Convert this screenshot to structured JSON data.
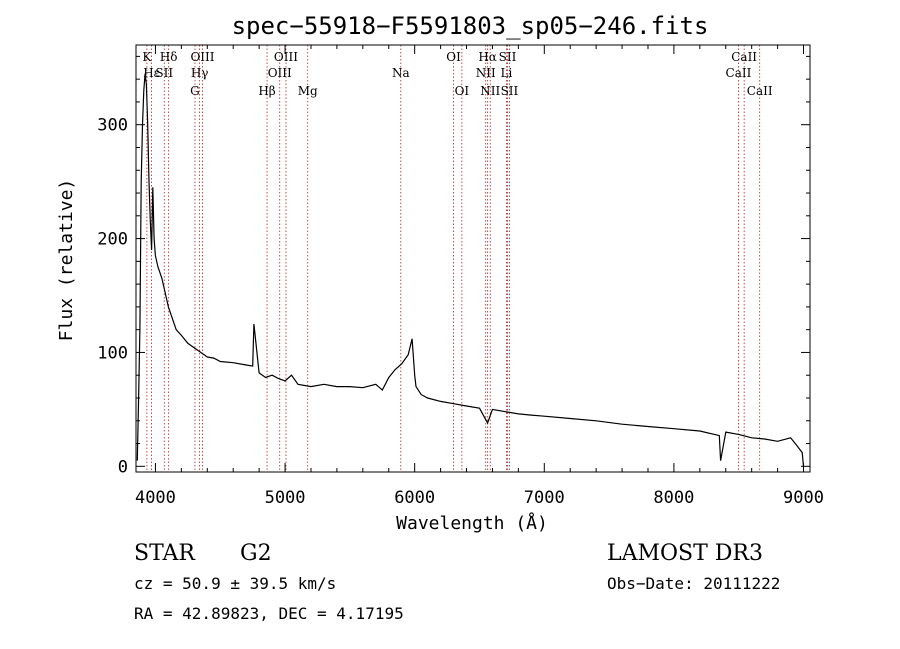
{
  "chart_data": {
    "type": "line",
    "title": "spec−55918−F5591803_sp05−246.fits",
    "xlabel": "Wavelength (Å)",
    "ylabel": "Flux (relative)",
    "xlim": [
      3850,
      9050
    ],
    "ylim": [
      -5,
      370
    ],
    "x_ticks": [
      4000,
      5000,
      6000,
      7000,
      8000,
      9000
    ],
    "y_ticks": [
      0,
      100,
      200,
      300
    ],
    "series": [
      {
        "name": "flux",
        "x": [
          3860,
          3870,
          3880,
          3890,
          3900,
          3910,
          3920,
          3930,
          3940,
          3950,
          3960,
          3970,
          3980,
          3990,
          4000,
          4020,
          4050,
          4080,
          4100,
          4130,
          4160,
          4200,
          4250,
          4300,
          4350,
          4400,
          4450,
          4500,
          4600,
          4700,
          4750,
          4760,
          4800,
          4850,
          4900,
          4950,
          5000,
          5050,
          5100,
          5200,
          5300,
          5400,
          5500,
          5600,
          5700,
          5750,
          5800,
          5850,
          5900,
          5950,
          5980,
          6000,
          6010,
          6050,
          6100,
          6200,
          6300,
          6400,
          6500,
          6563,
          6600,
          6700,
          6800,
          6900,
          7000,
          7200,
          7400,
          7600,
          7800,
          8000,
          8200,
          8350,
          8360,
          8400,
          8500,
          8600,
          8700,
          8800,
          8900,
          8950,
          8990,
          9000
        ],
        "y": [
          5,
          60,
          120,
          250,
          300,
          330,
          345,
          335,
          300,
          250,
          215,
          190,
          245,
          200,
          185,
          175,
          165,
          150,
          140,
          130,
          120,
          115,
          108,
          104,
          100,
          96,
          95,
          92,
          91,
          89,
          88,
          125,
          82,
          78,
          80,
          77,
          75,
          80,
          72,
          70,
          72,
          70,
          70,
          69,
          72,
          67,
          78,
          85,
          90,
          98,
          112,
          80,
          70,
          63,
          60,
          57,
          55,
          53,
          51,
          38,
          50,
          48,
          46,
          45,
          44,
          42,
          40,
          37,
          35,
          33,
          31,
          27,
          5,
          30,
          28,
          25,
          24,
          22,
          25,
          18,
          12,
          0
        ]
      }
    ],
    "lines": [
      {
        "name": "K",
        "wave": 3934,
        "row": 1
      },
      {
        "name": "Hε",
        "wave": 3970,
        "row": 2
      },
      {
        "name": "SII",
        "wave": 4068,
        "row": 2
      },
      {
        "name": "Hδ",
        "wave": 4102,
        "row": 1
      },
      {
        "name": "G",
        "wave": 4305,
        "row": 3
      },
      {
        "name": "OIII",
        "wave": 4363,
        "row": 1
      },
      {
        "name": "Hγ",
        "wave": 4341,
        "row": 2
      },
      {
        "name": "Hβ",
        "wave": 4861,
        "row": 3
      },
      {
        "name": "OIII",
        "wave": 4959,
        "row": 2
      },
      {
        "name": "OIII",
        "wave": 5007,
        "row": 1
      },
      {
        "name": "Mg",
        "wave": 5175,
        "row": 3
      },
      {
        "name": "Na",
        "wave": 5893,
        "row": 2
      },
      {
        "name": "OI",
        "wave": 6300,
        "row": 1
      },
      {
        "name": "OI",
        "wave": 6364,
        "row": 3
      },
      {
        "name": "NII",
        "wave": 6548,
        "row": 2
      },
      {
        "name": "Hα",
        "wave": 6563,
        "row": 1
      },
      {
        "name": "NII",
        "wave": 6583,
        "row": 3
      },
      {
        "name": "SII",
        "wave": 6716,
        "row": 1
      },
      {
        "name": "SII",
        "wave": 6731,
        "row": 3
      },
      {
        "name": "Li",
        "wave": 6708,
        "row": 2
      },
      {
        "name": "CaII",
        "wave": 8498,
        "row": 2
      },
      {
        "name": "CaII",
        "wave": 8542,
        "row": 1
      },
      {
        "name": "CaII",
        "wave": 8662,
        "row": 3
      }
    ],
    "line_color": "#b22222"
  },
  "info": {
    "class": "STAR",
    "subclass": "G2",
    "survey": "LAMOST DR3",
    "cz": "cz = 50.9 ± 39.5 km/s",
    "obs_date": "Obs−Date: 20111222",
    "coords": "RA =  42.89823, DEC =   4.17195"
  }
}
